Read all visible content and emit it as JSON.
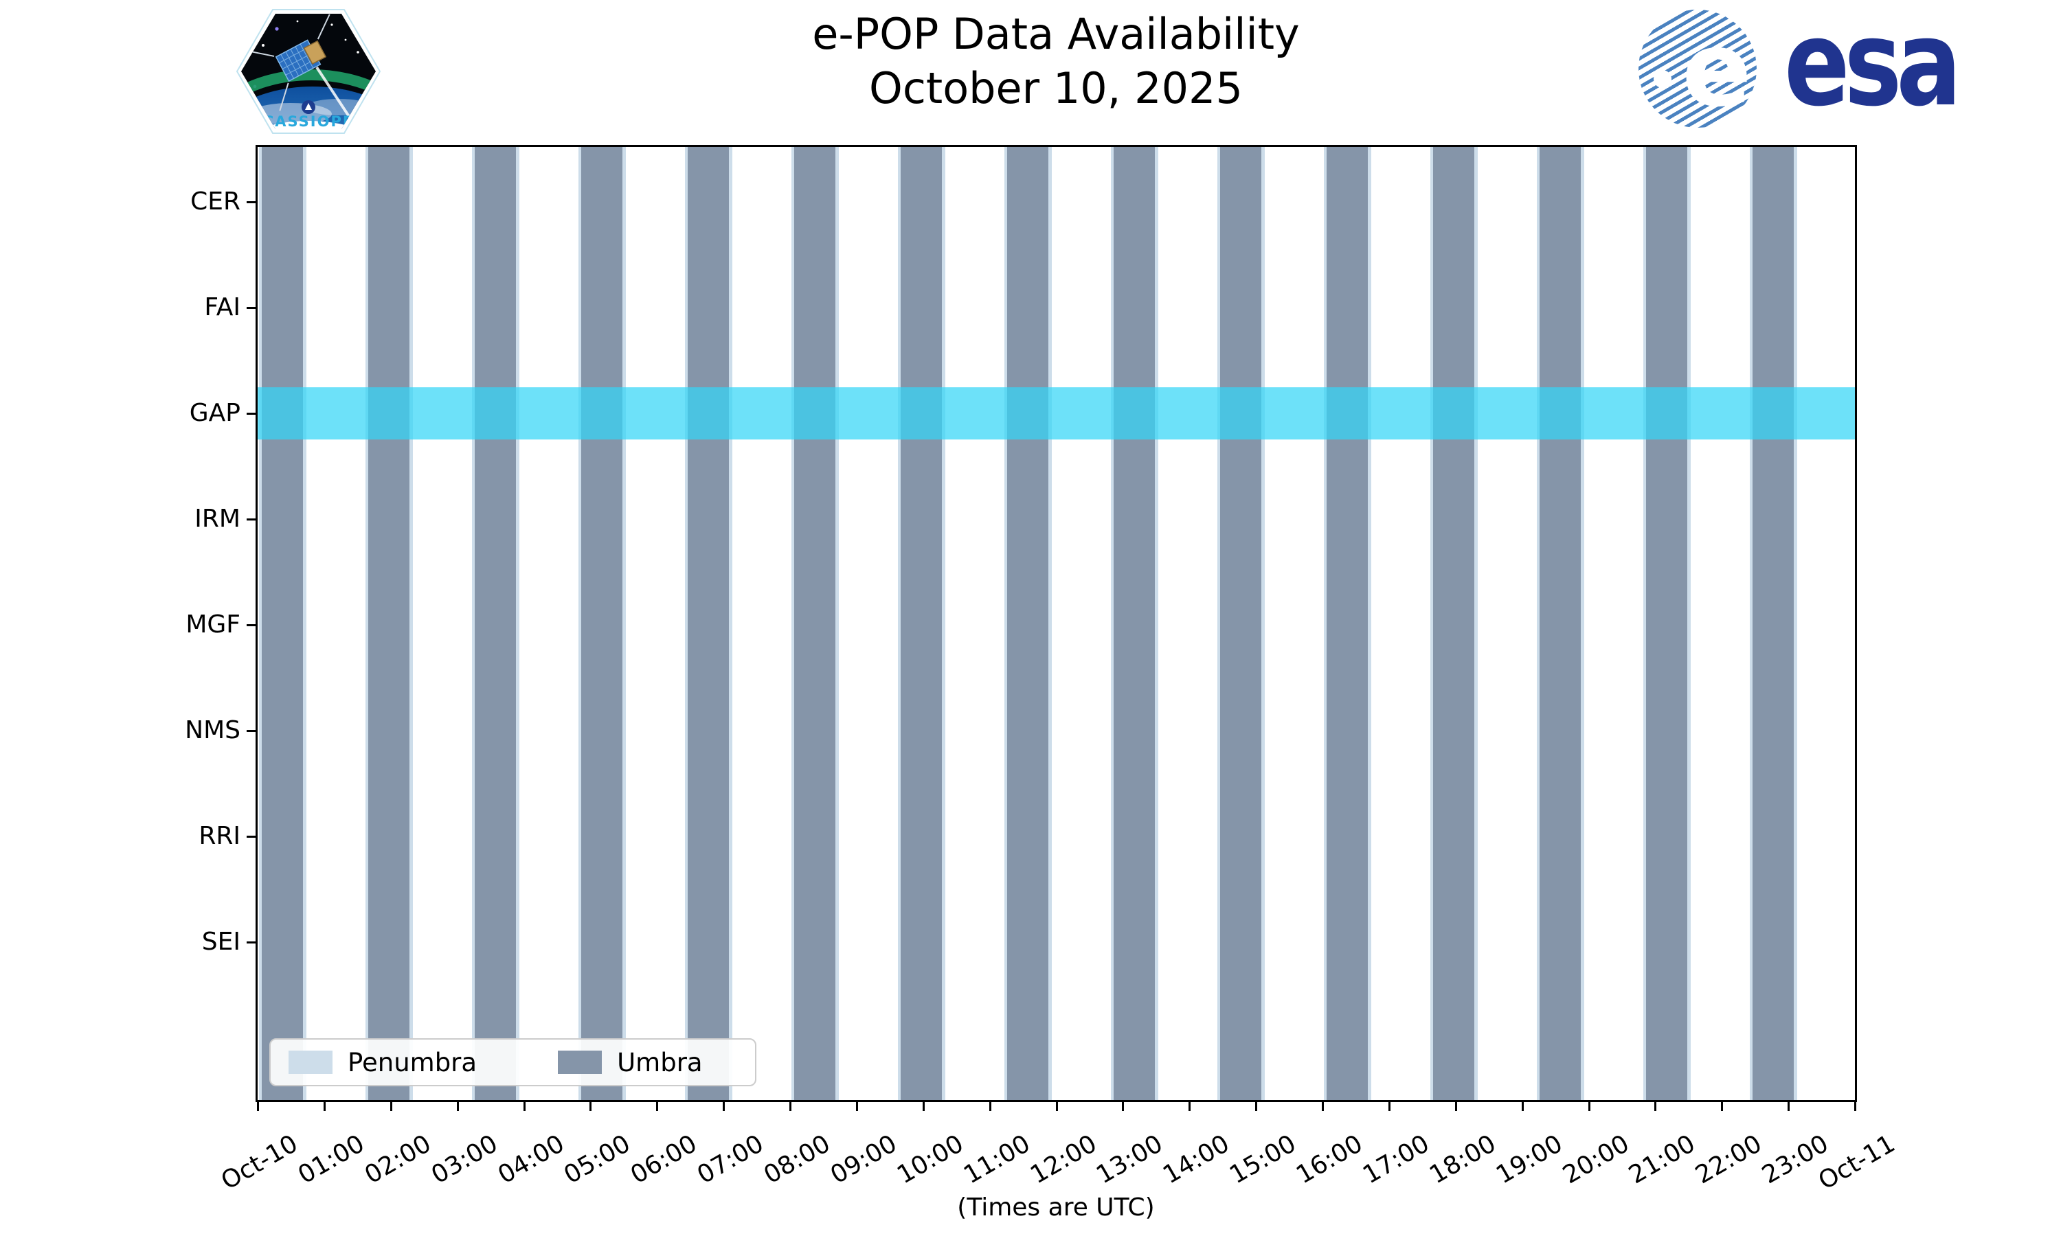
{
  "title": {
    "line1": "e-POP Data Availability",
    "line2": "October 10, 2025"
  },
  "logos": {
    "cassiope_label": "CASSIOPE",
    "esa_wordmark": "esa",
    "esa_globe_letter": "e"
  },
  "chart_data": {
    "type": "timeline",
    "title": "e-POP Data Availability October 10, 2025",
    "y_categories": [
      "CER",
      "FAI",
      "GAP",
      "IRM",
      "MGF",
      "NMS",
      "RRI",
      "SEI"
    ],
    "x_tick_labels": [
      "Oct-10",
      "01:00",
      "02:00",
      "03:00",
      "04:00",
      "05:00",
      "06:00",
      "07:00",
      "08:00",
      "09:00",
      "10:00",
      "11:00",
      "12:00",
      "13:00",
      "14:00",
      "15:00",
      "16:00",
      "17:00",
      "18:00",
      "19:00",
      "20:00",
      "21:00",
      "22:00",
      "23:00",
      "Oct-11"
    ],
    "x_range_hours": [
      0,
      24
    ],
    "x_axis_note": "(Times are UTC)",
    "grid": false,
    "legend_position": "lower-left",
    "legend": [
      {
        "label": "Penumbra",
        "color": "#cdddea"
      },
      {
        "label": "Umbra",
        "color": "#8595a9"
      }
    ],
    "umbra_intervals": [
      {
        "start": "00:04",
        "end": "00:41"
      },
      {
        "start": "01:40",
        "end": "02:17"
      },
      {
        "start": "03:16",
        "end": "03:53"
      },
      {
        "start": "04:52",
        "end": "05:29"
      },
      {
        "start": "06:28",
        "end": "07:05"
      },
      {
        "start": "08:04",
        "end": "08:41"
      },
      {
        "start": "09:40",
        "end": "10:17"
      },
      {
        "start": "11:16",
        "end": "11:53"
      },
      {
        "start": "12:52",
        "end": "13:29"
      },
      {
        "start": "14:28",
        "end": "15:05"
      },
      {
        "start": "16:04",
        "end": "16:41"
      },
      {
        "start": "17:40",
        "end": "18:17"
      },
      {
        "start": "19:16",
        "end": "19:53"
      },
      {
        "start": "20:52",
        "end": "21:29"
      },
      {
        "start": "22:28",
        "end": "23:05"
      }
    ],
    "penumbra_minutes_each_side": 3,
    "availability": [
      {
        "instrument": "GAP",
        "start": "00:00",
        "end": "24:00"
      }
    ]
  },
  "colors": {
    "umbra": "#8595a9",
    "penumbra": "#cdddea",
    "availability_band": "rgba(53,214,247,0.72)",
    "axis": "#000000",
    "esa_navy": "#20348f",
    "esa_stripe_blue": "#4a82c0",
    "cassiope_text_blue": "#29a8dc"
  }
}
